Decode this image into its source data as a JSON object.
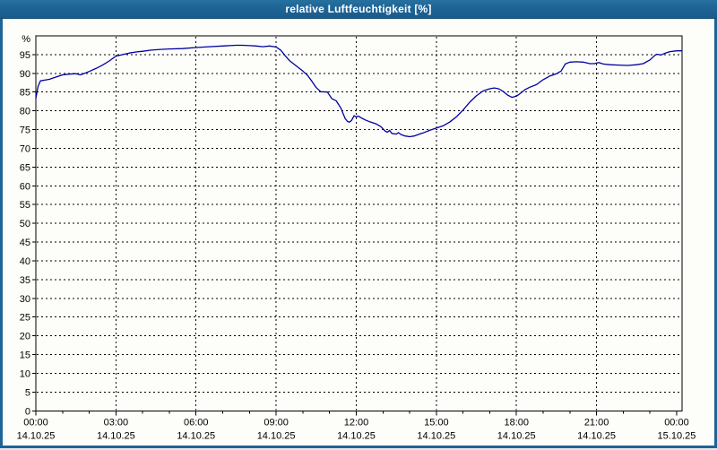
{
  "window": {
    "title": "relative Luftfeuchtigkeit [%]"
  },
  "colors": {
    "titlebar": "#1e6496",
    "window_border": "#1e6496",
    "background": "#fdfefa",
    "plot_border": "#000000",
    "grid": "#000000",
    "line": "#0000a0",
    "label": "#000000"
  },
  "chart_data": {
    "type": "line",
    "title": "relative Luftfeuchtigkeit [%]",
    "y_axis_unit": "%",
    "ylim": [
      0,
      100
    ],
    "y_tick_labels": [
      "95",
      "90",
      "85",
      "80",
      "75",
      "70",
      "65",
      "60",
      "55",
      "50",
      "45",
      "40",
      "35",
      "30",
      "25",
      "20",
      "15",
      "10",
      "5",
      "0"
    ],
    "y_tick_values": [
      95,
      90,
      85,
      80,
      75,
      70,
      65,
      60,
      55,
      50,
      45,
      40,
      35,
      30,
      25,
      20,
      15,
      10,
      5,
      0
    ],
    "grid": "dashed",
    "legend": "none",
    "x_ticks": [
      {
        "hour": 0,
        "time": "00:00",
        "date": "14.10.25"
      },
      {
        "hour": 3,
        "time": "03:00",
        "date": "14.10.25"
      },
      {
        "hour": 6,
        "time": "06:00",
        "date": "14.10.25"
      },
      {
        "hour": 9,
        "time": "09:00",
        "date": "14.10.25"
      },
      {
        "hour": 12,
        "time": "12:00",
        "date": "14.10.25"
      },
      {
        "hour": 15,
        "time": "15:00",
        "date": "14.10.25"
      },
      {
        "hour": 18,
        "time": "18:00",
        "date": "14.10.25"
      },
      {
        "hour": 21,
        "time": "21:00",
        "date": "14.10.25"
      },
      {
        "hour": 24,
        "time": "00:00",
        "date": "15.10.25"
      }
    ],
    "x_minor_tick_every_hours": 1,
    "x_major_tick_every_hours": 3,
    "series": [
      {
        "name": "relative Luftfeuchtigkeit",
        "color": "#0000a0",
        "points": [
          [
            0.0,
            83.3
          ],
          [
            0.08,
            86.5
          ],
          [
            0.17,
            88.0
          ],
          [
            0.33,
            88.2
          ],
          [
            0.5,
            88.4
          ],
          [
            0.75,
            89.0
          ],
          [
            1.0,
            89.6
          ],
          [
            1.25,
            89.8
          ],
          [
            1.5,
            89.9
          ],
          [
            1.67,
            89.6
          ],
          [
            1.83,
            90.0
          ],
          [
            2.0,
            90.5
          ],
          [
            2.25,
            91.3
          ],
          [
            2.5,
            92.2
          ],
          [
            2.75,
            93.3
          ],
          [
            3.0,
            94.6
          ],
          [
            3.25,
            95.0
          ],
          [
            3.5,
            95.4
          ],
          [
            3.75,
            95.7
          ],
          [
            4.0,
            95.9
          ],
          [
            4.33,
            96.2
          ],
          [
            4.67,
            96.4
          ],
          [
            5.0,
            96.5
          ],
          [
            5.5,
            96.6
          ],
          [
            6.0,
            96.9
          ],
          [
            6.5,
            97.1
          ],
          [
            7.0,
            97.3
          ],
          [
            7.5,
            97.5
          ],
          [
            7.75,
            97.5
          ],
          [
            8.0,
            97.4
          ],
          [
            8.25,
            97.3
          ],
          [
            8.5,
            97.1
          ],
          [
            8.75,
            97.3
          ],
          [
            9.0,
            97.0
          ],
          [
            9.17,
            96.2
          ],
          [
            9.33,
            94.8
          ],
          [
            9.5,
            93.4
          ],
          [
            9.75,
            92.0
          ],
          [
            10.0,
            90.6
          ],
          [
            10.17,
            89.5
          ],
          [
            10.33,
            88.0
          ],
          [
            10.5,
            86.2
          ],
          [
            10.67,
            85.1
          ],
          [
            10.92,
            85.0
          ],
          [
            11.08,
            83.3
          ],
          [
            11.25,
            82.7
          ],
          [
            11.42,
            80.8
          ],
          [
            11.58,
            78.0
          ],
          [
            11.67,
            77.2
          ],
          [
            11.75,
            77.0
          ],
          [
            11.83,
            77.5
          ],
          [
            11.92,
            78.7
          ],
          [
            12.0,
            78.4
          ],
          [
            12.08,
            78.6
          ],
          [
            12.17,
            78.2
          ],
          [
            12.33,
            77.6
          ],
          [
            12.5,
            77.1
          ],
          [
            12.75,
            76.5
          ],
          [
            12.92,
            75.8
          ],
          [
            13.08,
            74.6
          ],
          [
            13.17,
            74.3
          ],
          [
            13.25,
            74.8
          ],
          [
            13.33,
            74.0
          ],
          [
            13.5,
            73.8
          ],
          [
            13.58,
            74.2
          ],
          [
            13.67,
            73.7
          ],
          [
            13.83,
            73.3
          ],
          [
            14.0,
            73.1
          ],
          [
            14.17,
            73.3
          ],
          [
            14.33,
            73.7
          ],
          [
            14.5,
            74.1
          ],
          [
            14.75,
            74.8
          ],
          [
            15.0,
            75.4
          ],
          [
            15.25,
            76.0
          ],
          [
            15.5,
            77.0
          ],
          [
            15.75,
            78.4
          ],
          [
            16.0,
            80.2
          ],
          [
            16.25,
            82.3
          ],
          [
            16.5,
            84.0
          ],
          [
            16.75,
            85.3
          ],
          [
            17.0,
            85.9
          ],
          [
            17.17,
            86.1
          ],
          [
            17.33,
            85.9
          ],
          [
            17.5,
            85.2
          ],
          [
            17.67,
            84.2
          ],
          [
            17.83,
            83.6
          ],
          [
            18.0,
            83.9
          ],
          [
            18.17,
            84.8
          ],
          [
            18.33,
            85.7
          ],
          [
            18.5,
            86.3
          ],
          [
            18.75,
            87.0
          ],
          [
            19.0,
            88.3
          ],
          [
            19.25,
            89.3
          ],
          [
            19.5,
            89.9
          ],
          [
            19.67,
            90.6
          ],
          [
            19.83,
            92.5
          ],
          [
            20.0,
            93.0
          ],
          [
            20.25,
            93.1
          ],
          [
            20.5,
            93.0
          ],
          [
            20.75,
            92.6
          ],
          [
            20.92,
            92.6
          ],
          [
            21.08,
            92.9
          ],
          [
            21.25,
            92.5
          ],
          [
            21.5,
            92.3
          ],
          [
            21.83,
            92.2
          ],
          [
            22.17,
            92.1
          ],
          [
            22.5,
            92.3
          ],
          [
            22.75,
            92.6
          ],
          [
            23.0,
            93.6
          ],
          [
            23.17,
            94.7
          ],
          [
            23.25,
            95.1
          ],
          [
            23.42,
            94.9
          ],
          [
            23.58,
            95.4
          ],
          [
            23.75,
            95.8
          ],
          [
            24.0,
            96.0
          ],
          [
            24.18,
            96.0
          ]
        ]
      }
    ]
  }
}
